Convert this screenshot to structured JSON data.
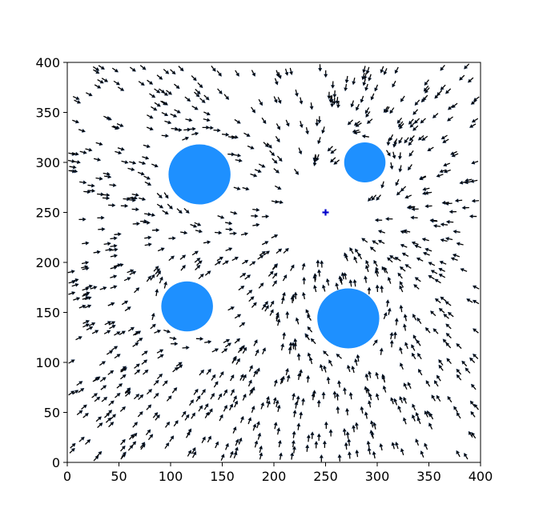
{
  "chart_data": {
    "type": "quiver",
    "title": "",
    "xlabel": "",
    "ylabel": "",
    "xlim": [
      0,
      400
    ],
    "ylim": [
      0,
      400
    ],
    "xticks": [
      0,
      50,
      100,
      150,
      200,
      250,
      300,
      350,
      400
    ],
    "yticks": [
      0,
      50,
      100,
      150,
      200,
      250,
      300,
      350,
      400
    ],
    "grid": false,
    "colors": {
      "obstacle": "#1e90ff",
      "arrow": "#000000",
      "arrow_edge": "#1f3a5f",
      "goal": "#0000cc"
    },
    "goal": {
      "x": 250,
      "y": 250,
      "marker": "plus"
    },
    "obstacles": [
      {
        "x": 128,
        "y": 288,
        "r": 30
      },
      {
        "x": 288,
        "y": 300,
        "r": 20
      },
      {
        "x": 116,
        "y": 156,
        "r": 25
      },
      {
        "x": 272,
        "y": 144,
        "r": 30
      }
    ],
    "arrow_field": {
      "description_of_field": "arrows point toward goal, repelled around obstacles",
      "count": 900,
      "length": 9,
      "seed": 7
    }
  }
}
